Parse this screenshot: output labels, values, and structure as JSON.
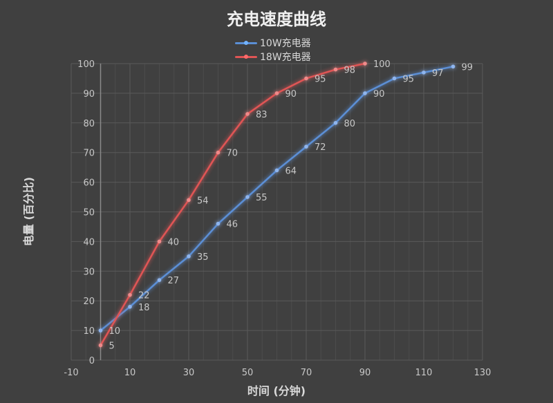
{
  "chart_data": {
    "type": "line",
    "title": "充电速度曲线",
    "xlabel": "时间 (分钟)",
    "ylabel": "电量 (百分比)",
    "xlim": [
      -10,
      130
    ],
    "ylim": [
      0,
      100
    ],
    "x_ticks": [
      -10,
      10,
      30,
      50,
      70,
      90,
      110,
      130
    ],
    "y_ticks": [
      0,
      10,
      20,
      30,
      40,
      50,
      60,
      70,
      80,
      90,
      100
    ],
    "grid": true,
    "legend_position": "top",
    "series": [
      {
        "name": "10W充电器",
        "color": "#5b8fd6",
        "x": [
          0,
          10,
          20,
          30,
          40,
          50,
          60,
          70,
          80,
          90,
          100,
          110,
          120
        ],
        "values": [
          10,
          18,
          27,
          35,
          46,
          55,
          64,
          72,
          80,
          90,
          95,
          97,
          99
        ]
      },
      {
        "name": "18W充电器",
        "color": "#e05555",
        "x": [
          0,
          10,
          20,
          30,
          40,
          50,
          60,
          70,
          80,
          90
        ],
        "values": [
          5,
          22,
          40,
          54,
          70,
          83,
          90,
          95,
          98,
          100
        ]
      }
    ]
  }
}
